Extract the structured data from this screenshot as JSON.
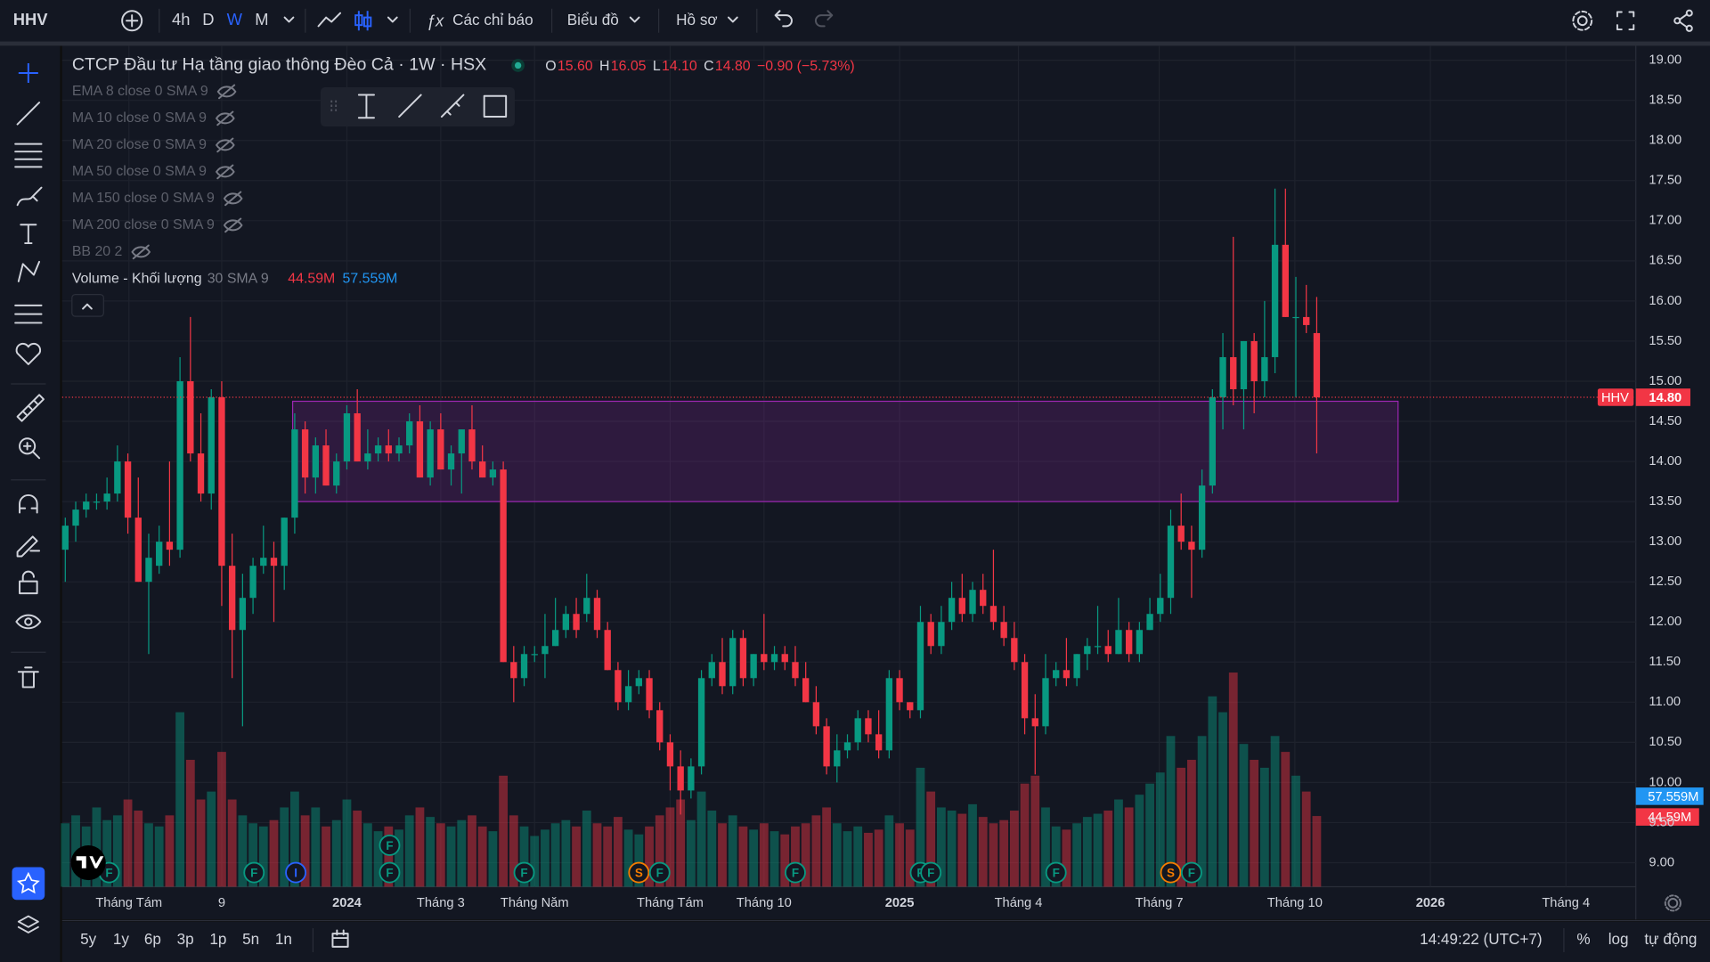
{
  "toolbar": {
    "symbol": "HHV",
    "intervals": [
      "4h",
      "D",
      "W",
      "M"
    ],
    "active_interval": 2,
    "indicators": "Các chỉ báo",
    "chart_menu": "Biểu đồ",
    "profile": "Hồ sơ"
  },
  "legend": {
    "title": "CTCP Đầu tư Hạ tầng giao thông Đèo Cả · 1W · HSX",
    "ohlc": [
      {
        "key": "O",
        "value": "15.60"
      },
      {
        "key": "H",
        "value": "16.05"
      },
      {
        "key": "L",
        "value": "14.10"
      },
      {
        "key": "C",
        "value": "14.80"
      }
    ],
    "change": "−0.90 (−5.73%)",
    "indicators": [
      "EMA 8 close 0 SMA 9",
      "MA 10 close 0 SMA 9",
      "MA 20 close 0 SMA 9",
      "MA 50 close 0 SMA 9",
      "MA 150 close 0 SMA 9",
      "MA 200 close 0 SMA 9",
      "BB 20 2"
    ],
    "volume": {
      "name": "Volume - Khối lượng",
      "params": "30 SMA 9",
      "value": "44.59M",
      "ma": "57.559M"
    }
  },
  "chart_data": {
    "type": "candlestick",
    "up_color": "#089981",
    "down_color": "#f23645",
    "xlim": [
      -0.3,
      150.6
    ],
    "ylim": [
      8.7,
      19.18
    ],
    "vlim": [
      0,
      530
    ],
    "xticks": [
      {
        "value": 6.1,
        "label": "Tháng Tám"
      },
      {
        "value": 15,
        "label": "9"
      },
      {
        "value": 27,
        "label": "2024"
      },
      {
        "value": 36,
        "label": "Tháng 3"
      },
      {
        "value": 45,
        "label": "Tháng Năm"
      },
      {
        "value": 58,
        "label": "Tháng Tám"
      },
      {
        "value": 67,
        "label": "Tháng 10"
      },
      {
        "value": 80,
        "label": "2025"
      },
      {
        "value": 91.4,
        "label": "Tháng 4"
      },
      {
        "value": 104.9,
        "label": "Tháng 7"
      },
      {
        "value": 117.9,
        "label": "Tháng 10"
      },
      {
        "value": 130.9,
        "label": "2026"
      },
      {
        "value": 143.9,
        "label": "Tháng 4"
      }
    ],
    "yticks": [
      {
        "value": 9,
        "label": "9.00"
      },
      {
        "value": 9.5,
        "label": "9.50"
      },
      {
        "value": 10,
        "label": "10.00"
      },
      {
        "value": 10.5,
        "label": "10.50"
      },
      {
        "value": 11,
        "label": "11.00"
      },
      {
        "value": 11.5,
        "label": "11.50"
      },
      {
        "value": 12,
        "label": "12.00"
      },
      {
        "value": 12.5,
        "label": "12.50"
      },
      {
        "value": 13,
        "label": "13.00"
      },
      {
        "value": 13.5,
        "label": "13.50"
      },
      {
        "value": 14,
        "label": "14.00"
      },
      {
        "value": 14.5,
        "label": "14.50"
      },
      {
        "value": 15,
        "label": "15.00"
      },
      {
        "value": 15.5,
        "label": "15.50"
      },
      {
        "value": 16,
        "label": "16.00"
      },
      {
        "value": 16.5,
        "label": "16.50"
      },
      {
        "value": 17,
        "label": "17.00"
      },
      {
        "value": 17.5,
        "label": "17.50"
      },
      {
        "value": 18,
        "label": "18.00"
      },
      {
        "value": 18.5,
        "label": "18.50"
      },
      {
        "value": 19,
        "label": "19.00"
      }
    ],
    "grid": true,
    "last_price": {
      "symbol": "HHV",
      "value": 14.8,
      "label": "14.80"
    },
    "rectangle": {
      "x": [
        21.8,
        127.8
      ],
      "y": [
        13.5,
        14.75
      ],
      "color": "#9c27b0"
    },
    "candles": [
      [
        12.9,
        13.3,
        12.5,
        13.2,
        40
      ],
      [
        13.2,
        13.5,
        13.0,
        13.4,
        45
      ],
      [
        13.4,
        13.6,
        13.3,
        13.5,
        38
      ],
      [
        13.5,
        13.6,
        13.4,
        13.5,
        50
      ],
      [
        13.5,
        13.8,
        13.4,
        13.6,
        42
      ],
      [
        13.6,
        14.2,
        13.5,
        14.0,
        45
      ],
      [
        14.0,
        14.1,
        13.1,
        13.3,
        55
      ],
      [
        13.3,
        13.8,
        12.5,
        12.5,
        48
      ],
      [
        12.5,
        13.1,
        11.6,
        12.8,
        40
      ],
      [
        12.7,
        13.2,
        12.6,
        13.0,
        38
      ],
      [
        13.0,
        14.0,
        12.7,
        12.9,
        45
      ],
      [
        12.9,
        15.3,
        12.8,
        15.0,
        110
      ],
      [
        15.0,
        15.8,
        14.0,
        14.1,
        80
      ],
      [
        14.1,
        14.6,
        13.5,
        13.6,
        55
      ],
      [
        13.6,
        14.9,
        13.4,
        14.8,
        60
      ],
      [
        14.8,
        15.0,
        12.2,
        12.7,
        85
      ],
      [
        12.7,
        13.1,
        11.3,
        11.9,
        55
      ],
      [
        11.9,
        12.6,
        10.7,
        12.3,
        45
      ],
      [
        12.3,
        12.8,
        12.1,
        12.7,
        40
      ],
      [
        12.7,
        13.2,
        12.6,
        12.8,
        38
      ],
      [
        12.8,
        13.0,
        12.0,
        12.7,
        42
      ],
      [
        12.7,
        13.3,
        12.4,
        13.3,
        50
      ],
      [
        13.3,
        14.6,
        13.1,
        14.4,
        60
      ],
      [
        14.4,
        14.5,
        13.6,
        13.8,
        45
      ],
      [
        13.8,
        14.3,
        13.6,
        14.2,
        50
      ],
      [
        14.2,
        14.4,
        13.7,
        13.7,
        38
      ],
      [
        13.7,
        14.1,
        13.6,
        14.0,
        42
      ],
      [
        14.0,
        14.7,
        13.9,
        14.6,
        55
      ],
      [
        14.6,
        14.9,
        14.0,
        14.0,
        48
      ],
      [
        14.0,
        14.4,
        13.9,
        14.1,
        40
      ],
      [
        14.1,
        14.3,
        14.0,
        14.2,
        35
      ],
      [
        14.2,
        14.4,
        14.0,
        14.1,
        38
      ],
      [
        14.1,
        14.3,
        14.0,
        14.2,
        36
      ],
      [
        14.2,
        14.6,
        14.1,
        14.5,
        45
      ],
      [
        14.5,
        14.7,
        13.8,
        13.8,
        50
      ],
      [
        13.8,
        14.5,
        13.7,
        14.4,
        44
      ],
      [
        14.4,
        14.6,
        13.9,
        13.9,
        40
      ],
      [
        13.9,
        14.2,
        13.7,
        14.1,
        38
      ],
      [
        14.1,
        14.4,
        13.6,
        14.4,
        42
      ],
      [
        14.4,
        14.7,
        13.9,
        14.0,
        45
      ],
      [
        14.0,
        14.2,
        13.8,
        13.8,
        38
      ],
      [
        13.8,
        14.0,
        13.7,
        13.9,
        35
      ],
      [
        13.9,
        14.0,
        11.5,
        11.5,
        70
      ],
      [
        11.5,
        11.7,
        11.0,
        11.3,
        45
      ],
      [
        11.3,
        11.7,
        11.2,
        11.6,
        38
      ],
      [
        11.6,
        11.7,
        11.5,
        11.6,
        32
      ],
      [
        11.6,
        12.1,
        11.3,
        11.7,
        36
      ],
      [
        11.7,
        12.3,
        11.7,
        11.9,
        40
      ],
      [
        11.9,
        12.2,
        11.8,
        12.1,
        42
      ],
      [
        12.1,
        12.3,
        11.8,
        11.9,
        38
      ],
      [
        12.1,
        12.6,
        12.0,
        12.3,
        48
      ],
      [
        12.3,
        12.4,
        11.8,
        11.9,
        40
      ],
      [
        11.9,
        12.0,
        11.4,
        11.4,
        38
      ],
      [
        11.4,
        11.5,
        10.9,
        11.0,
        44
      ],
      [
        11.0,
        11.4,
        10.9,
        11.2,
        36
      ],
      [
        11.2,
        11.4,
        11.1,
        11.3,
        33
      ],
      [
        11.3,
        11.4,
        10.8,
        10.9,
        38
      ],
      [
        10.9,
        11.0,
        10.4,
        10.5,
        45
      ],
      [
        10.5,
        10.6,
        9.9,
        10.2,
        50
      ],
      [
        10.2,
        10.4,
        9.6,
        9.9,
        55
      ],
      [
        9.9,
        10.3,
        9.8,
        10.2,
        42
      ],
      [
        10.2,
        11.4,
        10.1,
        11.3,
        60
      ],
      [
        11.3,
        11.6,
        11.2,
        11.5,
        48
      ],
      [
        11.5,
        11.8,
        11.1,
        11.2,
        40
      ],
      [
        11.2,
        11.9,
        11.1,
        11.8,
        45
      ],
      [
        11.8,
        11.9,
        11.2,
        11.3,
        38
      ],
      [
        11.3,
        11.6,
        11.2,
        11.6,
        36
      ],
      [
        11.6,
        12.1,
        11.4,
        11.5,
        40
      ],
      [
        11.5,
        11.7,
        11.4,
        11.6,
        35
      ],
      [
        11.6,
        11.7,
        11.4,
        11.5,
        33
      ],
      [
        11.5,
        11.7,
        11.2,
        11.3,
        38
      ],
      [
        11.3,
        11.5,
        11.0,
        11.0,
        40
      ],
      [
        11.0,
        11.2,
        10.6,
        10.7,
        45
      ],
      [
        10.7,
        10.8,
        10.1,
        10.2,
        50
      ],
      [
        10.2,
        10.6,
        10.0,
        10.4,
        40
      ],
      [
        10.4,
        10.6,
        10.3,
        10.5,
        35
      ],
      [
        10.5,
        10.9,
        10.4,
        10.8,
        38
      ],
      [
        10.8,
        10.9,
        10.5,
        10.6,
        34
      ],
      [
        10.6,
        10.9,
        10.3,
        10.4,
        36
      ],
      [
        10.4,
        11.4,
        10.3,
        11.3,
        45
      ],
      [
        11.3,
        11.4,
        10.9,
        11.0,
        40
      ],
      [
        11.0,
        11.0,
        10.8,
        10.9,
        36
      ],
      [
        10.9,
        12.2,
        10.8,
        12.0,
        75
      ],
      [
        12.0,
        12.1,
        11.6,
        11.7,
        60
      ],
      [
        11.7,
        12.2,
        11.6,
        12.0,
        50
      ],
      [
        12.0,
        12.5,
        11.9,
        12.3,
        48
      ],
      [
        12.3,
        12.6,
        12.0,
        12.1,
        46
      ],
      [
        12.1,
        12.5,
        12.0,
        12.4,
        52
      ],
      [
        12.4,
        12.6,
        12.1,
        12.2,
        44
      ],
      [
        12.2,
        12.9,
        11.9,
        12.0,
        40
      ],
      [
        12.0,
        12.2,
        11.7,
        11.8,
        42
      ],
      [
        11.8,
        12.0,
        11.4,
        11.5,
        48
      ],
      [
        11.5,
        11.6,
        10.6,
        10.8,
        65
      ],
      [
        10.8,
        11.1,
        10.1,
        10.7,
        70
      ],
      [
        10.7,
        11.6,
        10.6,
        11.3,
        50
      ],
      [
        11.3,
        11.5,
        11.2,
        11.4,
        38
      ],
      [
        11.4,
        11.8,
        11.2,
        11.3,
        36
      ],
      [
        11.3,
        11.6,
        11.2,
        11.6,
        40
      ],
      [
        11.6,
        11.8,
        11.4,
        11.7,
        44
      ],
      [
        11.7,
        12.2,
        11.6,
        11.7,
        46
      ],
      [
        11.7,
        11.9,
        11.5,
        11.6,
        48
      ],
      [
        11.6,
        12.3,
        11.6,
        11.9,
        55
      ],
      [
        11.9,
        12.0,
        11.5,
        11.6,
        50
      ],
      [
        11.6,
        12.0,
        11.5,
        11.9,
        58
      ],
      [
        11.9,
        12.3,
        11.9,
        12.1,
        65
      ],
      [
        12.1,
        12.6,
        12.0,
        12.3,
        72
      ],
      [
        12.3,
        13.4,
        12.1,
        13.2,
        95
      ],
      [
        13.2,
        13.6,
        12.9,
        13.0,
        75
      ],
      [
        13.0,
        13.2,
        12.3,
        12.9,
        80
      ],
      [
        12.9,
        13.9,
        12.8,
        13.7,
        95
      ],
      [
        13.7,
        14.9,
        13.6,
        14.8,
        120
      ],
      [
        14.8,
        15.6,
        14.4,
        15.3,
        110
      ],
      [
        15.3,
        16.8,
        14.7,
        14.9,
        135
      ],
      [
        14.9,
        15.5,
        14.4,
        15.5,
        90
      ],
      [
        15.5,
        15.6,
        14.6,
        15.0,
        80
      ],
      [
        15.0,
        16.0,
        14.8,
        15.3,
        75
      ],
      [
        15.3,
        17.4,
        15.1,
        16.7,
        95
      ],
      [
        16.7,
        17.4,
        15.8,
        15.8,
        85
      ],
      [
        15.8,
        16.3,
        14.8,
        15.8,
        70
      ],
      [
        15.8,
        16.2,
        15.6,
        15.7,
        60
      ],
      [
        15.6,
        16.05,
        14.1,
        14.8,
        44.59
      ]
    ],
    "events": [
      {
        "x": 4.2,
        "label": "F",
        "color": "#089981"
      },
      {
        "x": 18.1,
        "label": "F",
        "color": "#089981"
      },
      {
        "x": 22.1,
        "label": "I",
        "color": "#2962ff"
      },
      {
        "x": 31.1,
        "label": "F",
        "color": "#089981"
      },
      {
        "x": 31.1,
        "label": "F",
        "color": "#089981"
      },
      {
        "x": 44,
        "label": "F",
        "color": "#089981"
      },
      {
        "x": 55,
        "label": "S",
        "color": "#f57c00"
      },
      {
        "x": 57,
        "label": "F",
        "color": "#089981"
      },
      {
        "x": 70,
        "label": "F",
        "color": "#089981"
      },
      {
        "x": 82,
        "label": "F",
        "color": "#089981"
      },
      {
        "x": 83,
        "label": "F",
        "color": "#089981"
      },
      {
        "x": 95,
        "label": "F",
        "color": "#089981"
      },
      {
        "x": 106,
        "label": "S",
        "color": "#f57c00"
      },
      {
        "x": 108,
        "label": "F",
        "color": "#089981"
      }
    ]
  },
  "bottom_bar": {
    "ranges": [
      "5y",
      "1y",
      "6p",
      "3p",
      "1p",
      "5n",
      "1n"
    ],
    "time": "14:49:22 (UTC+7)",
    "options": [
      "%",
      "log",
      "tự động"
    ]
  }
}
